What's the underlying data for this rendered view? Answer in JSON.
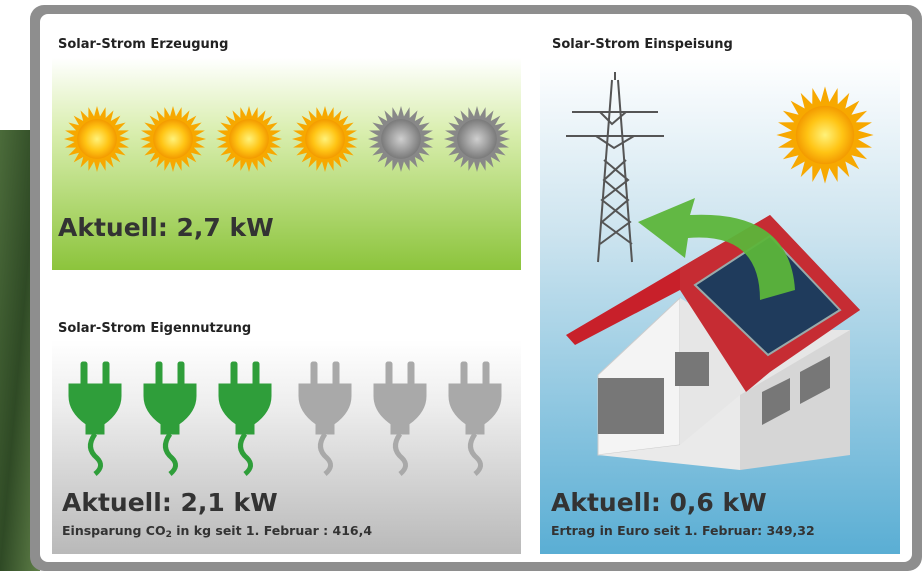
{
  "panels": {
    "generation": {
      "title": "Solar-Strom Erzeugung",
      "current": "Aktuell: 2,7 kW"
    },
    "self_use": {
      "title": "Solar-Strom Eigennutzung",
      "current": "Aktuell: 2,1 kW",
      "savings": {
        "prefix": "Einsparung CO",
        "subscript": "2",
        "suffix": " in kg seit 1. Februar : 416,4"
      }
    },
    "feed_in": {
      "title": "Solar-Strom Einspeisung",
      "current": "Aktuell: 0,6 kW",
      "revenue": "Ertrag in Euro seit 1. Februar: 349,32"
    }
  }
}
